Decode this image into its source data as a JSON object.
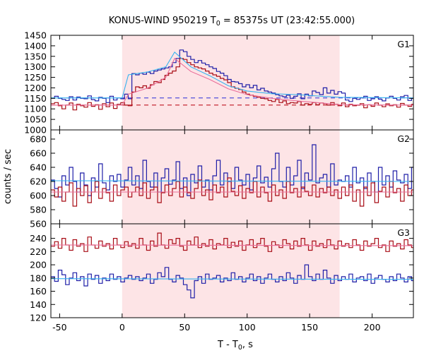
{
  "chart_data": {
    "type": "line",
    "title": {
      "prefix": "KONUS-WIND 950219 T",
      "sub": "0",
      "suffix": " = 85375s UT (23:42:55.000)"
    },
    "xlabel": {
      "prefix": "T - T",
      "sub": "0",
      "suffix": ", s"
    },
    "ylabel": "counts / sec",
    "xlim": [
      -57,
      233
    ],
    "xticks": [
      -50,
      0,
      50,
      100,
      150,
      200
    ],
    "xtick_labels": [
      "-50",
      "0",
      "50",
      "100",
      "150",
      "200"
    ],
    "highlight_interval": [
      0,
      174
    ],
    "colors": {
      "highlight": "#fde4e6",
      "blue_series": "#1f1fa8",
      "red_series": "#a80d16",
      "blue_fit": "#35b3f0",
      "red_fit": "#ea6e9a",
      "blue_background": "#2b2bd8",
      "red_background": "#c01420"
    },
    "grid": false,
    "panels": [
      {
        "label": "G1",
        "ylim": [
          1000,
          1450
        ],
        "yticks": [
          1000,
          1050,
          1100,
          1150,
          1200,
          1250,
          1300,
          1350,
          1400,
          1450
        ],
        "ytick_labels": [
          "1000",
          "1050",
          "1100",
          "1150",
          "1200",
          "1250",
          "1300",
          "1350",
          "1400",
          "1450"
        ],
        "background_levels": [
          1152,
          1118
        ],
        "series": [
          {
            "color": "blue",
            "bin_start": -57,
            "bin_width": 2.944,
            "values": [
              1152,
              1160,
              1150,
              1145,
              1140,
              1158,
              1142,
              1156,
              1150,
              1148,
              1162,
              1144,
              1138,
              1155,
              1150,
              1130,
              1160,
              1142,
              1152,
              1148,
              1170,
              1148,
              1268,
              1262,
              1270,
              1265,
              1275,
              1268,
              1280,
              1285,
              1290,
              1295,
              1300,
              1320,
              1340,
              1380,
              1372,
              1350,
              1335,
              1320,
              1330,
              1318,
              1310,
              1300,
              1292,
              1278,
              1270,
              1258,
              1240,
              1230,
              1228,
              1220,
              1205,
              1215,
              1200,
              1212,
              1190,
              1198,
              1185,
              1180,
              1175,
              1168,
              1162,
              1158,
              1165,
              1150,
              1160,
              1172,
              1148,
              1170,
              1162,
              1185,
              1178,
              1168,
              1200,
              1175,
              1188,
              1170,
              1182,
              1175,
              1142,
              1135,
              1150,
              1145,
              1152,
              1160,
              1140,
              1148,
              1158,
              1146,
              1138,
              1152,
              1160,
              1150,
              1142,
              1158,
              1164,
              1140,
              1150,
              1136,
              1144,
              1162,
              1152,
              1150
            ]
          },
          {
            "color": "red",
            "bin_start": -57,
            "bin_width": 2.944,
            "values": [
              1125,
              1130,
              1115,
              1100,
              1118,
              1128,
              1095,
              1122,
              1115,
              1108,
              1130,
              1112,
              1120,
              1098,
              1125,
              1110,
              1128,
              1102,
              1122,
              1130,
              1118,
              1115,
              1180,
              1205,
              1200,
              1210,
              1198,
              1215,
              1230,
              1225,
              1240,
              1260,
              1270,
              1280,
              1300,
              1340,
              1335,
              1320,
              1310,
              1300,
              1295,
              1290,
              1280,
              1270,
              1262,
              1255,
              1245,
              1238,
              1225,
              1205,
              1198,
              1192,
              1180,
              1170,
              1165,
              1160,
              1155,
              1150,
              1148,
              1140,
              1135,
              1145,
              1130,
              1138,
              1125,
              1130,
              1128,
              1135,
              1118,
              1125,
              1122,
              1130,
              1120,
              1128,
              1125,
              1118,
              1130,
              1122,
              1115,
              1128,
              1110,
              1122,
              1115,
              1118,
              1125,
              1105,
              1120,
              1112,
              1128,
              1118,
              1110,
              1124,
              1115,
              1120,
              1108,
              1126,
              1118,
              1112,
              1122,
              1115,
              1120,
              1110,
              1125,
              1118
            ]
          }
        ],
        "fits": [
          {
            "color": "blue_fit",
            "x": [
              -57,
              0,
              5,
              20,
              35,
              42,
              55,
              70,
              85,
              100,
              120,
              140,
              160,
              174,
              233
            ],
            "y": [
              1152,
              1152,
              1262,
              1275,
              1300,
              1370,
              1300,
              1258,
              1210,
              1185,
              1172,
              1168,
              1160,
              1155,
              1152
            ]
          },
          {
            "color": "red_fit",
            "x": [
              -57,
              0,
              5,
              20,
              35,
              42,
              55,
              70,
              85,
              100,
              120,
              140,
              160,
              174,
              233
            ],
            "y": [
              1118,
              1118,
              1170,
              1198,
              1250,
              1340,
              1278,
              1240,
              1195,
              1168,
              1150,
              1138,
              1128,
              1120,
              1118
            ]
          }
        ]
      },
      {
        "label": "G2",
        "ylim": [
          560,
          693
        ],
        "yticks": [
          560,
          580,
          600,
          620,
          640,
          660,
          680
        ],
        "ytick_labels": [
          "560",
          "580",
          "600",
          "620",
          "640",
          "660",
          "680"
        ],
        "series": [
          {
            "color": "blue",
            "bin_start": -57,
            "bin_width": 2.944,
            "values": [
              622,
              610,
              598,
              628,
              615,
              640,
              620,
              605,
              632,
              615,
              600,
              625,
              612,
              645,
              618,
              608,
              628,
              620,
              630,
              612,
              622,
              640,
              615,
              628,
              610,
              650,
              620,
              612,
              632,
              605,
              625,
              638,
              616,
              622,
              648,
              610,
              625,
              600,
              630,
              618,
              642,
              612,
              622,
              608,
              628,
              650,
              615,
              632,
              620,
              610,
              640,
              622,
              615,
              630,
              608,
              625,
              642,
              618,
              626,
              612,
              638,
              660,
              620,
              612,
              640,
              615,
              628,
              650,
              610,
              632,
              622,
              672,
              618,
              625,
              630,
              612,
              645,
              615,
              622,
              620,
              628,
              612,
              640,
              618,
              625,
              610,
              632,
              620,
              605,
              640,
              615,
              628,
              612,
              635,
              622,
              618,
              630,
              610,
              640,
              620,
              612,
              650,
              618,
              625
            ]
          },
          {
            "color": "red",
            "bin_start": -57,
            "bin_width": 2.944,
            "values": [
              608,
              598,
              612,
              592,
              605,
              618,
              585,
              610,
              600,
              614,
              590,
              605,
              620,
              596,
              610,
              604,
              592,
              615,
              600,
              608,
              612,
              598,
              605,
              612,
              600,
              618,
              596,
              608,
              612,
              590,
              604,
              615,
              600,
              610,
              620,
              598,
              612,
              604,
              596,
              610,
              622,
              600,
              608,
              594,
              615,
              604,
              612,
              598,
              625,
              606,
              600,
              614,
              596,
              610,
              604,
              620,
              598,
              612,
              604,
              592,
              615,
              600,
              608,
              596,
              620,
              604,
              610,
              598,
              612,
              606,
              600,
              615,
              598,
              610,
              604,
              612,
              600,
              608,
              596,
              612,
              600,
              615,
              592,
              608,
              585,
              612,
              600,
              618,
              590,
              606,
              612,
              598,
              620,
              604,
              610,
              592,
              615,
              600,
              608,
              625,
              600,
              612,
              640,
              605
            ]
          }
        ],
        "fits": [
          {
            "color": "blue_fit",
            "x": [
              -57,
              233
            ],
            "y": [
              621,
              620
            ]
          },
          {
            "color": "red_fit",
            "x": [
              -57,
              233
            ],
            "y": [
              605,
              605
            ]
          }
        ]
      },
      {
        "label": "G3",
        "ylim": [
          120,
          262
        ],
        "yticks": [
          120,
          140,
          160,
          180,
          200,
          220,
          240
        ],
        "ytick_labels": [
          "120",
          "140",
          "160",
          "180",
          "200",
          "220",
          "240"
        ],
        "series": [
          {
            "color": "red",
            "bin_start": -57,
            "bin_width": 2.944,
            "values": [
              228,
              235,
              225,
              240,
              230,
              222,
              238,
              228,
              232,
              220,
              242,
              230,
              225,
              236,
              228,
              232,
              224,
              240,
              230,
              226,
              235,
              228,
              232,
              225,
              240,
              230,
              222,
              236,
              228,
              248,
              230,
              225,
              238,
              232,
              240,
              228,
              222,
              236,
              230,
              242,
              226,
              232,
              228,
              238,
              224,
              232,
              230,
              240,
              226,
              234,
              228,
              236,
              222,
              230,
              238,
              226,
              232,
              240,
              228,
              220,
              235,
              230,
              226,
              238,
              232,
              224,
              236,
              228,
              240,
              230,
              222,
              236,
              228,
              232,
              226,
              238,
              230,
              224,
              236,
              228,
              232,
              226,
              238,
              230,
              222,
              236,
              228,
              232,
              240,
              226,
              230,
              220,
              236,
              228,
              232,
              224,
              238,
              230,
              226,
              236,
              232,
              228,
              234,
              230
            ]
          },
          {
            "color": "blue",
            "bin_start": -57,
            "bin_width": 2.944,
            "values": [
              182,
              175,
              192,
              185,
              170,
              180,
              188,
              176,
              182,
              168,
              186,
              178,
              184,
              172,
              180,
              176,
              186,
              178,
              182,
              174,
              180,
              184,
              178,
              182,
              176,
              180,
              186,
              172,
              178,
              188,
              182,
              196,
              178,
              174,
              184,
              180,
              170,
              162,
              150,
              176,
              182,
              172,
              186,
              178,
              180,
              184,
              174,
              180,
              176,
              188,
              178,
              182,
              174,
              180,
              186,
              176,
              182,
              172,
              180,
              186,
              178,
              174,
              182,
              176,
              188,
              180,
              172,
              184,
              178,
              200,
              182,
              176,
              186,
              178,
              192,
              180,
              172,
              184,
              176,
              182,
              178,
              186,
              174,
              180,
              182,
              176,
              186,
              172,
              180,
              184,
              178,
              174,
              182,
              176,
              186,
              180,
              174,
              182,
              176,
              184,
              178,
              180,
              172,
              182
            ]
          }
        ],
        "fits": [
          {
            "color": "red_fit",
            "x": [
              -57,
              233
            ],
            "y": [
              230,
              229
            ]
          },
          {
            "color": "blue_fit",
            "x": [
              -57,
              233
            ],
            "y": [
              179,
              178
            ]
          }
        ]
      }
    ]
  }
}
